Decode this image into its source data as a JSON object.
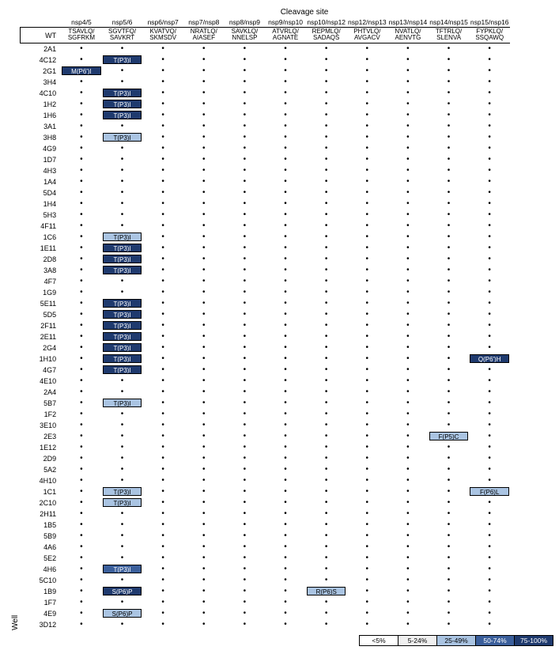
{
  "title": "Cleavage site",
  "ylabel": "Well",
  "colors": {
    "cat0": {
      "bg": "#ffffff",
      "fg": "#000000"
    },
    "cat1": {
      "bg": "#f0f0f0",
      "fg": "#000000"
    },
    "cat2": {
      "bg": "#aac4e2",
      "fg": "#000000"
    },
    "cat3": {
      "bg": "#3b5f9b",
      "fg": "#ffffff"
    },
    "cat4": {
      "bg": "#1f3a6e",
      "fg": "#ffffff"
    }
  },
  "legend": [
    {
      "label": "<5%",
      "color": "cat0"
    },
    {
      "label": "5-24%",
      "color": "cat1"
    },
    {
      "label": "25-49%",
      "color": "cat2"
    },
    {
      "label": "50-74%",
      "color": "cat3"
    },
    {
      "label": "75-100%",
      "color": "cat4"
    }
  ],
  "columns": [
    {
      "head": "nsp4/5",
      "seq": "TSAVLQ/\nSGFRKM"
    },
    {
      "head": "nsp5/6",
      "seq": "SGVTFQ/\nSAVKRT"
    },
    {
      "head": "nsp6/nsp7",
      "seq": "KVATVQ/\nSKMSDV"
    },
    {
      "head": "nsp7/nsp8",
      "seq": "NRATLQ/\nAIASEF"
    },
    {
      "head": "nsp8/nsp9",
      "seq": "SAVKLQ/\nNNELSP"
    },
    {
      "head": "nsp9/nsp10",
      "seq": "ATVRLQ/\nAGNATE"
    },
    {
      "head": "nsp10/nsp12",
      "seq": "REPMLQ/\nSADAQS"
    },
    {
      "head": "nsp12/nsp13",
      "seq": "PHTVLQ/\nAVGACV"
    },
    {
      "head": "nsp13/nsp14",
      "seq": "NVATLQ/\nAENVTG"
    },
    {
      "head": "nsp14/nsp15",
      "seq": "TFTRLQ/\nSLENVA"
    },
    {
      "head": "nsp15/nsp16",
      "seq": "FYPKLQ/\nSSQAWQ"
    }
  ],
  "wt_label": "WT",
  "rows": [
    {
      "id": "2A1",
      "cells": [
        null,
        null,
        null,
        null,
        null,
        null,
        null,
        null,
        null,
        null,
        null
      ]
    },
    {
      "id": "4C12",
      "cells": [
        null,
        {
          "t": "T(P3)I",
          "c": "cat4"
        },
        null,
        null,
        null,
        null,
        null,
        null,
        null,
        null,
        null
      ]
    },
    {
      "id": "2G1",
      "cells": [
        {
          "t": "M(P6')I",
          "c": "cat4"
        },
        null,
        null,
        null,
        null,
        null,
        null,
        null,
        null,
        null,
        null
      ]
    },
    {
      "id": "3H4",
      "cells": [
        null,
        null,
        null,
        null,
        null,
        null,
        null,
        null,
        null,
        null,
        null
      ]
    },
    {
      "id": "4C10",
      "cells": [
        null,
        {
          "t": "T(P3)I",
          "c": "cat4"
        },
        null,
        null,
        null,
        null,
        null,
        null,
        null,
        null,
        null
      ]
    },
    {
      "id": "1H2",
      "cells": [
        null,
        {
          "t": "T(P3)I",
          "c": "cat4"
        },
        null,
        null,
        null,
        null,
        null,
        null,
        null,
        null,
        null
      ]
    },
    {
      "id": "1H6",
      "cells": [
        null,
        {
          "t": "T(P3)I",
          "c": "cat4"
        },
        null,
        null,
        null,
        null,
        null,
        null,
        null,
        null,
        null
      ]
    },
    {
      "id": "3A1",
      "cells": [
        null,
        null,
        null,
        null,
        null,
        null,
        null,
        null,
        null,
        null,
        null
      ]
    },
    {
      "id": "3H8",
      "cells": [
        null,
        {
          "t": "T(P3)I",
          "c": "cat2"
        },
        null,
        null,
        null,
        null,
        null,
        null,
        null,
        null,
        null
      ]
    },
    {
      "id": "4G9",
      "cells": [
        null,
        null,
        null,
        null,
        null,
        null,
        null,
        null,
        null,
        null,
        null
      ]
    },
    {
      "id": "1D7",
      "cells": [
        null,
        null,
        null,
        null,
        null,
        null,
        null,
        null,
        null,
        null,
        null
      ]
    },
    {
      "id": "4H3",
      "cells": [
        null,
        null,
        null,
        null,
        null,
        null,
        null,
        null,
        null,
        null,
        null
      ]
    },
    {
      "id": "1A4",
      "cells": [
        null,
        null,
        null,
        null,
        null,
        null,
        null,
        null,
        null,
        null,
        null
      ]
    },
    {
      "id": "5D4",
      "cells": [
        null,
        null,
        null,
        null,
        null,
        null,
        null,
        null,
        null,
        null,
        null
      ]
    },
    {
      "id": "1H4",
      "cells": [
        null,
        null,
        null,
        null,
        null,
        null,
        null,
        null,
        null,
        null,
        null
      ]
    },
    {
      "id": "5H3",
      "cells": [
        null,
        null,
        null,
        null,
        null,
        null,
        null,
        null,
        null,
        null,
        null
      ]
    },
    {
      "id": "4F11",
      "cells": [
        null,
        null,
        null,
        null,
        null,
        null,
        null,
        null,
        null,
        null,
        null
      ]
    },
    {
      "id": "1C6",
      "cells": [
        null,
        {
          "t": "T(P3)I",
          "c": "cat2"
        },
        null,
        null,
        null,
        null,
        null,
        null,
        null,
        null,
        null
      ]
    },
    {
      "id": "1E11",
      "cells": [
        null,
        {
          "t": "T(P3)I",
          "c": "cat4"
        },
        null,
        null,
        null,
        null,
        null,
        null,
        null,
        null,
        null
      ]
    },
    {
      "id": "2D8",
      "cells": [
        null,
        {
          "t": "T(P3)I",
          "c": "cat4"
        },
        null,
        null,
        null,
        null,
        null,
        null,
        null,
        null,
        null
      ]
    },
    {
      "id": "3A8",
      "cells": [
        null,
        {
          "t": "T(P3)I",
          "c": "cat4"
        },
        null,
        null,
        null,
        null,
        null,
        null,
        null,
        null,
        null
      ]
    },
    {
      "id": "4F7",
      "cells": [
        null,
        null,
        null,
        null,
        null,
        null,
        null,
        null,
        null,
        null,
        null
      ]
    },
    {
      "id": "1G9",
      "cells": [
        null,
        null,
        null,
        null,
        null,
        null,
        null,
        null,
        null,
        null,
        null
      ]
    },
    {
      "id": "5E11",
      "cells": [
        null,
        {
          "t": "T(P3)I",
          "c": "cat4"
        },
        null,
        null,
        null,
        null,
        null,
        null,
        null,
        null,
        null
      ]
    },
    {
      "id": "5D5",
      "cells": [
        null,
        {
          "t": "T(P3)I",
          "c": "cat4"
        },
        null,
        null,
        null,
        null,
        null,
        null,
        null,
        null,
        null
      ]
    },
    {
      "id": "2F11",
      "cells": [
        null,
        {
          "t": "T(P3)I",
          "c": "cat4"
        },
        null,
        null,
        null,
        null,
        null,
        null,
        null,
        null,
        null
      ]
    },
    {
      "id": "2E11",
      "cells": [
        null,
        {
          "t": "T(P3)I",
          "c": "cat4"
        },
        null,
        null,
        null,
        null,
        null,
        null,
        null,
        null,
        null
      ]
    },
    {
      "id": "2G4",
      "cells": [
        null,
        {
          "t": "T(P3)I",
          "c": "cat4"
        },
        null,
        null,
        null,
        null,
        null,
        null,
        null,
        null,
        null
      ]
    },
    {
      "id": "1H10",
      "cells": [
        null,
        {
          "t": "T(P3)I",
          "c": "cat4"
        },
        null,
        null,
        null,
        null,
        null,
        null,
        null,
        null,
        {
          "t": "Q(P6')H",
          "c": "cat4"
        }
      ]
    },
    {
      "id": "4G7",
      "cells": [
        null,
        {
          "t": "T(P3)I",
          "c": "cat4"
        },
        null,
        null,
        null,
        null,
        null,
        null,
        null,
        null,
        null
      ]
    },
    {
      "id": "4E10",
      "cells": [
        null,
        null,
        null,
        null,
        null,
        null,
        null,
        null,
        null,
        null,
        null
      ]
    },
    {
      "id": "2A4",
      "cells": [
        null,
        null,
        null,
        null,
        null,
        null,
        null,
        null,
        null,
        null,
        null
      ]
    },
    {
      "id": "5B7",
      "cells": [
        null,
        {
          "t": "T(P3)I",
          "c": "cat2"
        },
        null,
        null,
        null,
        null,
        null,
        null,
        null,
        null,
        null
      ]
    },
    {
      "id": "1F2",
      "cells": [
        null,
        null,
        null,
        null,
        null,
        null,
        null,
        null,
        null,
        null,
        null
      ]
    },
    {
      "id": "3E10",
      "cells": [
        null,
        null,
        null,
        null,
        null,
        null,
        null,
        null,
        null,
        null,
        null
      ]
    },
    {
      "id": "2E3",
      "cells": [
        null,
        null,
        null,
        null,
        null,
        null,
        null,
        null,
        null,
        {
          "t": "F(P5)C",
          "c": "cat2"
        },
        null
      ]
    },
    {
      "id": "1E12",
      "cells": [
        null,
        null,
        null,
        null,
        null,
        null,
        null,
        null,
        null,
        null,
        null
      ]
    },
    {
      "id": "2D9",
      "cells": [
        null,
        null,
        null,
        null,
        null,
        null,
        null,
        null,
        null,
        null,
        null
      ]
    },
    {
      "id": "5A2",
      "cells": [
        null,
        null,
        null,
        null,
        null,
        null,
        null,
        null,
        null,
        null,
        null
      ]
    },
    {
      "id": "4H10",
      "cells": [
        null,
        null,
        null,
        null,
        null,
        null,
        null,
        null,
        null,
        null,
        null
      ]
    },
    {
      "id": "1C1",
      "cells": [
        null,
        {
          "t": "T(P3)I",
          "c": "cat2"
        },
        null,
        null,
        null,
        null,
        null,
        null,
        null,
        null,
        {
          "t": "F(P6)L",
          "c": "cat2"
        }
      ]
    },
    {
      "id": "2C10",
      "cells": [
        null,
        {
          "t": "T(P3)I",
          "c": "cat2"
        },
        null,
        null,
        null,
        null,
        null,
        null,
        null,
        null,
        null
      ]
    },
    {
      "id": "2H11",
      "cells": [
        null,
        null,
        null,
        null,
        null,
        null,
        null,
        null,
        null,
        null,
        null
      ]
    },
    {
      "id": "1B5",
      "cells": [
        null,
        null,
        null,
        null,
        null,
        null,
        null,
        null,
        null,
        null,
        null
      ]
    },
    {
      "id": "5B9",
      "cells": [
        null,
        null,
        null,
        null,
        null,
        null,
        null,
        null,
        null,
        null,
        null
      ]
    },
    {
      "id": "4A6",
      "cells": [
        null,
        null,
        null,
        null,
        null,
        null,
        null,
        null,
        null,
        null,
        null
      ]
    },
    {
      "id": "5E2",
      "cells": [
        null,
        null,
        null,
        null,
        null,
        null,
        null,
        null,
        null,
        null,
        null
      ]
    },
    {
      "id": "4H6",
      "cells": [
        null,
        {
          "t": "T(P3)I",
          "c": "cat3"
        },
        null,
        null,
        null,
        null,
        null,
        null,
        null,
        null,
        null
      ]
    },
    {
      "id": "5C10",
      "cells": [
        null,
        null,
        null,
        null,
        null,
        null,
        null,
        null,
        null,
        null,
        null
      ]
    },
    {
      "id": "1B9",
      "cells": [
        null,
        {
          "t": "S(P6)P",
          "c": "cat4"
        },
        null,
        null,
        null,
        null,
        {
          "t": "R(P6)S",
          "c": "cat2"
        },
        null,
        null,
        null,
        null
      ]
    },
    {
      "id": "1F7",
      "cells": [
        null,
        null,
        null,
        null,
        null,
        null,
        null,
        null,
        null,
        null,
        null
      ]
    },
    {
      "id": "4E9",
      "cells": [
        null,
        {
          "t": "S(P6)P",
          "c": "cat2"
        },
        null,
        null,
        null,
        null,
        null,
        null,
        null,
        null,
        null
      ]
    },
    {
      "id": "3D12",
      "cells": [
        null,
        null,
        null,
        null,
        null,
        null,
        null,
        null,
        null,
        null,
        null
      ]
    }
  ]
}
